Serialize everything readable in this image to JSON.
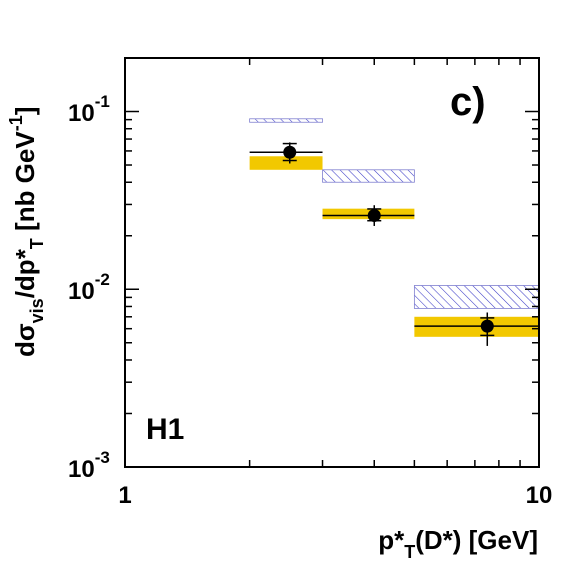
{
  "chart_data": {
    "type": "scatter",
    "panel_label": "c)",
    "experiment_label": "H1",
    "xlabel": {
      "base": "p*",
      "sub": "T",
      "suffix": "(D*) [GeV]"
    },
    "ylabel": {
      "prefix": "dσ",
      "sub1": "vis",
      "mid": "/dp*",
      "sub2": "T",
      "suffix": " [nb GeV",
      "sup": "-1",
      "end": "]"
    },
    "x_scale": "log",
    "y_scale": "log",
    "xlim": [
      1,
      10
    ],
    "ylim": [
      0.001,
      0.2
    ],
    "x_ticks": [
      {
        "value": 1,
        "label": "1"
      },
      {
        "value": 10,
        "label": "10"
      }
    ],
    "y_ticks": [
      {
        "value": 0.001,
        "base": "10",
        "exp": "-3"
      },
      {
        "value": 0.01,
        "base": "10",
        "exp": "-2"
      },
      {
        "value": 0.1,
        "base": "10",
        "exp": "-1"
      }
    ],
    "grid": false,
    "colors": {
      "band": "#f2c800",
      "hatch": "#4040c8",
      "data": "#000000"
    },
    "bins": [
      {
        "x_low": 2,
        "x_high": 3,
        "x": 2.5,
        "y": 0.059,
        "stat_err": [
          0.053,
          0.066
        ],
        "total_err": [
          0.051,
          0.067
        ],
        "band": [
          0.047,
          0.056
        ],
        "hatched": [
          0.087,
          0.091
        ]
      },
      {
        "x_low": 3,
        "x_high": 5,
        "x": 4,
        "y": 0.026,
        "stat_err": [
          0.0243,
          0.0283
        ],
        "total_err": [
          0.0227,
          0.0297
        ],
        "band": [
          0.0248,
          0.0284
        ],
        "hatched": [
          0.04,
          0.047
        ]
      },
      {
        "x_low": 5,
        "x_high": 10,
        "x": 7.5,
        "y": 0.0062,
        "stat_err": [
          0.0055,
          0.0069
        ],
        "total_err": [
          0.0048,
          0.0074
        ],
        "band": [
          0.0054,
          0.007
        ],
        "hatched": [
          0.0078,
          0.0105
        ]
      }
    ]
  }
}
